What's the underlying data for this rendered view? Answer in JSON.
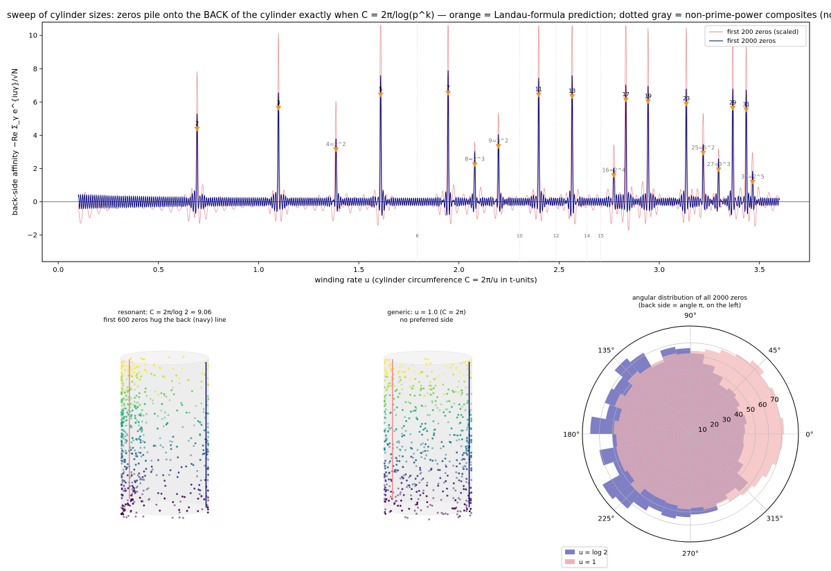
{
  "chart_data": [
    {
      "type": "line",
      "title": "sweep of cylinder sizes: zeros pile onto the BACK of the cylinder exactly when C = 2π/log(p^k) — orange = Landau-formula prediction; dotted gray = non-prime-power composites (no resonance)",
      "xlabel": "winding rate u  (cylinder circumference C = 2π/u in t-units)",
      "ylabel": "back-side affinity  −Re Σ_γ e^{iuγ}/√N",
      "xlim": [
        -0.08,
        3.75
      ],
      "ylim": [
        -3.6,
        10.8
      ],
      "xticks": [
        "0.0",
        "0.5",
        "1.0",
        "1.5",
        "2.0",
        "2.5",
        "3.0",
        "3.5"
      ],
      "yticks": [
        "−2",
        "0",
        "2",
        "4",
        "6",
        "8",
        "10"
      ],
      "legend": {
        "position": "top-right",
        "entries": [
          "first 200 zeros (scaled)",
          "first 2000 zeros"
        ]
      },
      "series": [
        {
          "name": "first 200 zeros (scaled)",
          "color": "#e8878a",
          "x_range": [
            0.1,
            3.6
          ]
        },
        {
          "name": "first 2000 zeros",
          "color": "#000080",
          "x_range": [
            0.1,
            3.6
          ]
        }
      ],
      "prime_power_peaks": [
        {
          "label": "2",
          "u": 0.693,
          "pred": 4.35,
          "peak200": 6.9,
          "peak2000": 4.5,
          "prime": true
        },
        {
          "label": "3",
          "u": 1.099,
          "pred": 5.6,
          "peak200": 8.8,
          "peak2000": 5.8,
          "prime": true
        },
        {
          "label": "4=2^2",
          "u": 1.386,
          "pred": 3.1,
          "peak200": 4.9,
          "peak2000": 3.2,
          "prime": false
        },
        {
          "label": "5",
          "u": 1.609,
          "pred": 6.4,
          "peak200": 10.2,
          "peak2000": 6.6,
          "prime": true
        },
        {
          "label": "8=2^3",
          "u": 2.079,
          "pred": 2.2,
          "peak200": 3.0,
          "peak2000": 2.3,
          "prime": false
        },
        {
          "label": "7",
          "u": 1.946,
          "pred": 6.5,
          "peak200": 10.2,
          "peak2000": 6.7,
          "prime": true
        },
        {
          "label": "9=3^2",
          "u": 2.197,
          "pred": 3.3,
          "peak200": 4.1,
          "peak2000": 3.4,
          "prime": false
        },
        {
          "label": "11",
          "u": 2.398,
          "pred": 6.4,
          "peak200": 9.7,
          "peak2000": 6.6,
          "prime": true
        },
        {
          "label": "13",
          "u": 2.565,
          "pred": 6.3,
          "peak200": 9.4,
          "peak2000": 6.5,
          "prime": true
        },
        {
          "label": "16=2^4",
          "u": 2.773,
          "pred": 1.55,
          "peak200": 2.2,
          "peak2000": 1.6,
          "prime": false
        },
        {
          "label": "17",
          "u": 2.833,
          "pred": 6.1,
          "peak200": 9.2,
          "peak2000": 6.3,
          "prime": true
        },
        {
          "label": "19",
          "u": 2.944,
          "pred": 6.0,
          "peak200": 9.1,
          "peak2000": 6.2,
          "prime": true
        },
        {
          "label": "23",
          "u": 3.135,
          "pred": 5.85,
          "peak200": 8.8,
          "peak2000": 6.0,
          "prime": true
        },
        {
          "label": "25=5^2",
          "u": 3.219,
          "pred": 2.9,
          "peak200": 4.4,
          "peak2000": 3.0,
          "prime": false
        },
        {
          "label": "27=3^3",
          "u": 3.296,
          "pred": 1.9,
          "peak200": 2.8,
          "peak2000": 2.0,
          "prime": false
        },
        {
          "label": "29",
          "u": 3.367,
          "pred": 5.6,
          "peak200": 8.5,
          "peak2000": 5.8,
          "prime": true
        },
        {
          "label": "31",
          "u": 3.434,
          "pred": 5.5,
          "peak200": 8.2,
          "peak2000": 5.7,
          "prime": true
        },
        {
          "label": "32=2^5",
          "u": 3.466,
          "pred": 1.15,
          "peak200": 1.6,
          "peak2000": 1.2,
          "prime": false
        }
      ],
      "composites": [
        {
          "label": "6",
          "u": 1.792
        },
        {
          "label": "10",
          "u": 2.303
        },
        {
          "label": "12",
          "u": 2.485
        },
        {
          "label": "14",
          "u": 2.639
        },
        {
          "label": "15",
          "u": 2.708
        }
      ]
    },
    {
      "type": "scatter",
      "title": "resonant: C = 2π/log 2 ≈ 9.06",
      "subtitle": "first 600 zeros hug the back (navy) line",
      "n_points": 600,
      "resonant": true
    },
    {
      "type": "scatter",
      "title": "generic: u = 1.0 (C = 2π)",
      "subtitle": "no preferred side",
      "n_points": 600,
      "resonant": false
    },
    {
      "type": "bar",
      "polar": true,
      "title": "angular distribution of all 2000 zeros",
      "subtitle": "(back side = angle π, on the left)",
      "angle_ticks": [
        "0°",
        "45°",
        "90°",
        "135°",
        "180°",
        "225°",
        "270°",
        "315°"
      ],
      "radial_ticks": [
        10,
        20,
        30,
        40,
        50,
        60,
        70
      ],
      "rmax": 83,
      "legend": {
        "position": "lower-left",
        "entries": [
          "u = log 2",
          "u = 1"
        ]
      },
      "bins": 36,
      "series": [
        {
          "name": "u = log 2",
          "color": "#7e7fc4",
          "values": [
            42,
            44,
            41,
            44,
            46,
            44,
            50,
            55,
            62,
            66,
            68,
            59,
            72,
            76,
            68,
            70,
            66,
            77,
            60,
            71,
            63,
            78,
            75,
            68,
            64,
            66,
            64,
            62,
            62,
            57,
            54,
            58,
            47,
            42,
            42,
            41
          ]
        },
        {
          "name": "u = 1",
          "color": "#f2b3b4",
          "values": [
            72,
            70,
            72,
            70,
            74,
            71,
            69,
            66,
            64,
            62,
            63,
            61,
            60,
            63,
            58,
            62,
            56,
            59,
            57,
            58,
            58,
            56,
            60,
            55,
            55,
            56,
            58,
            57,
            59,
            58,
            60,
            62,
            64,
            67,
            70,
            71
          ]
        }
      ]
    }
  ]
}
